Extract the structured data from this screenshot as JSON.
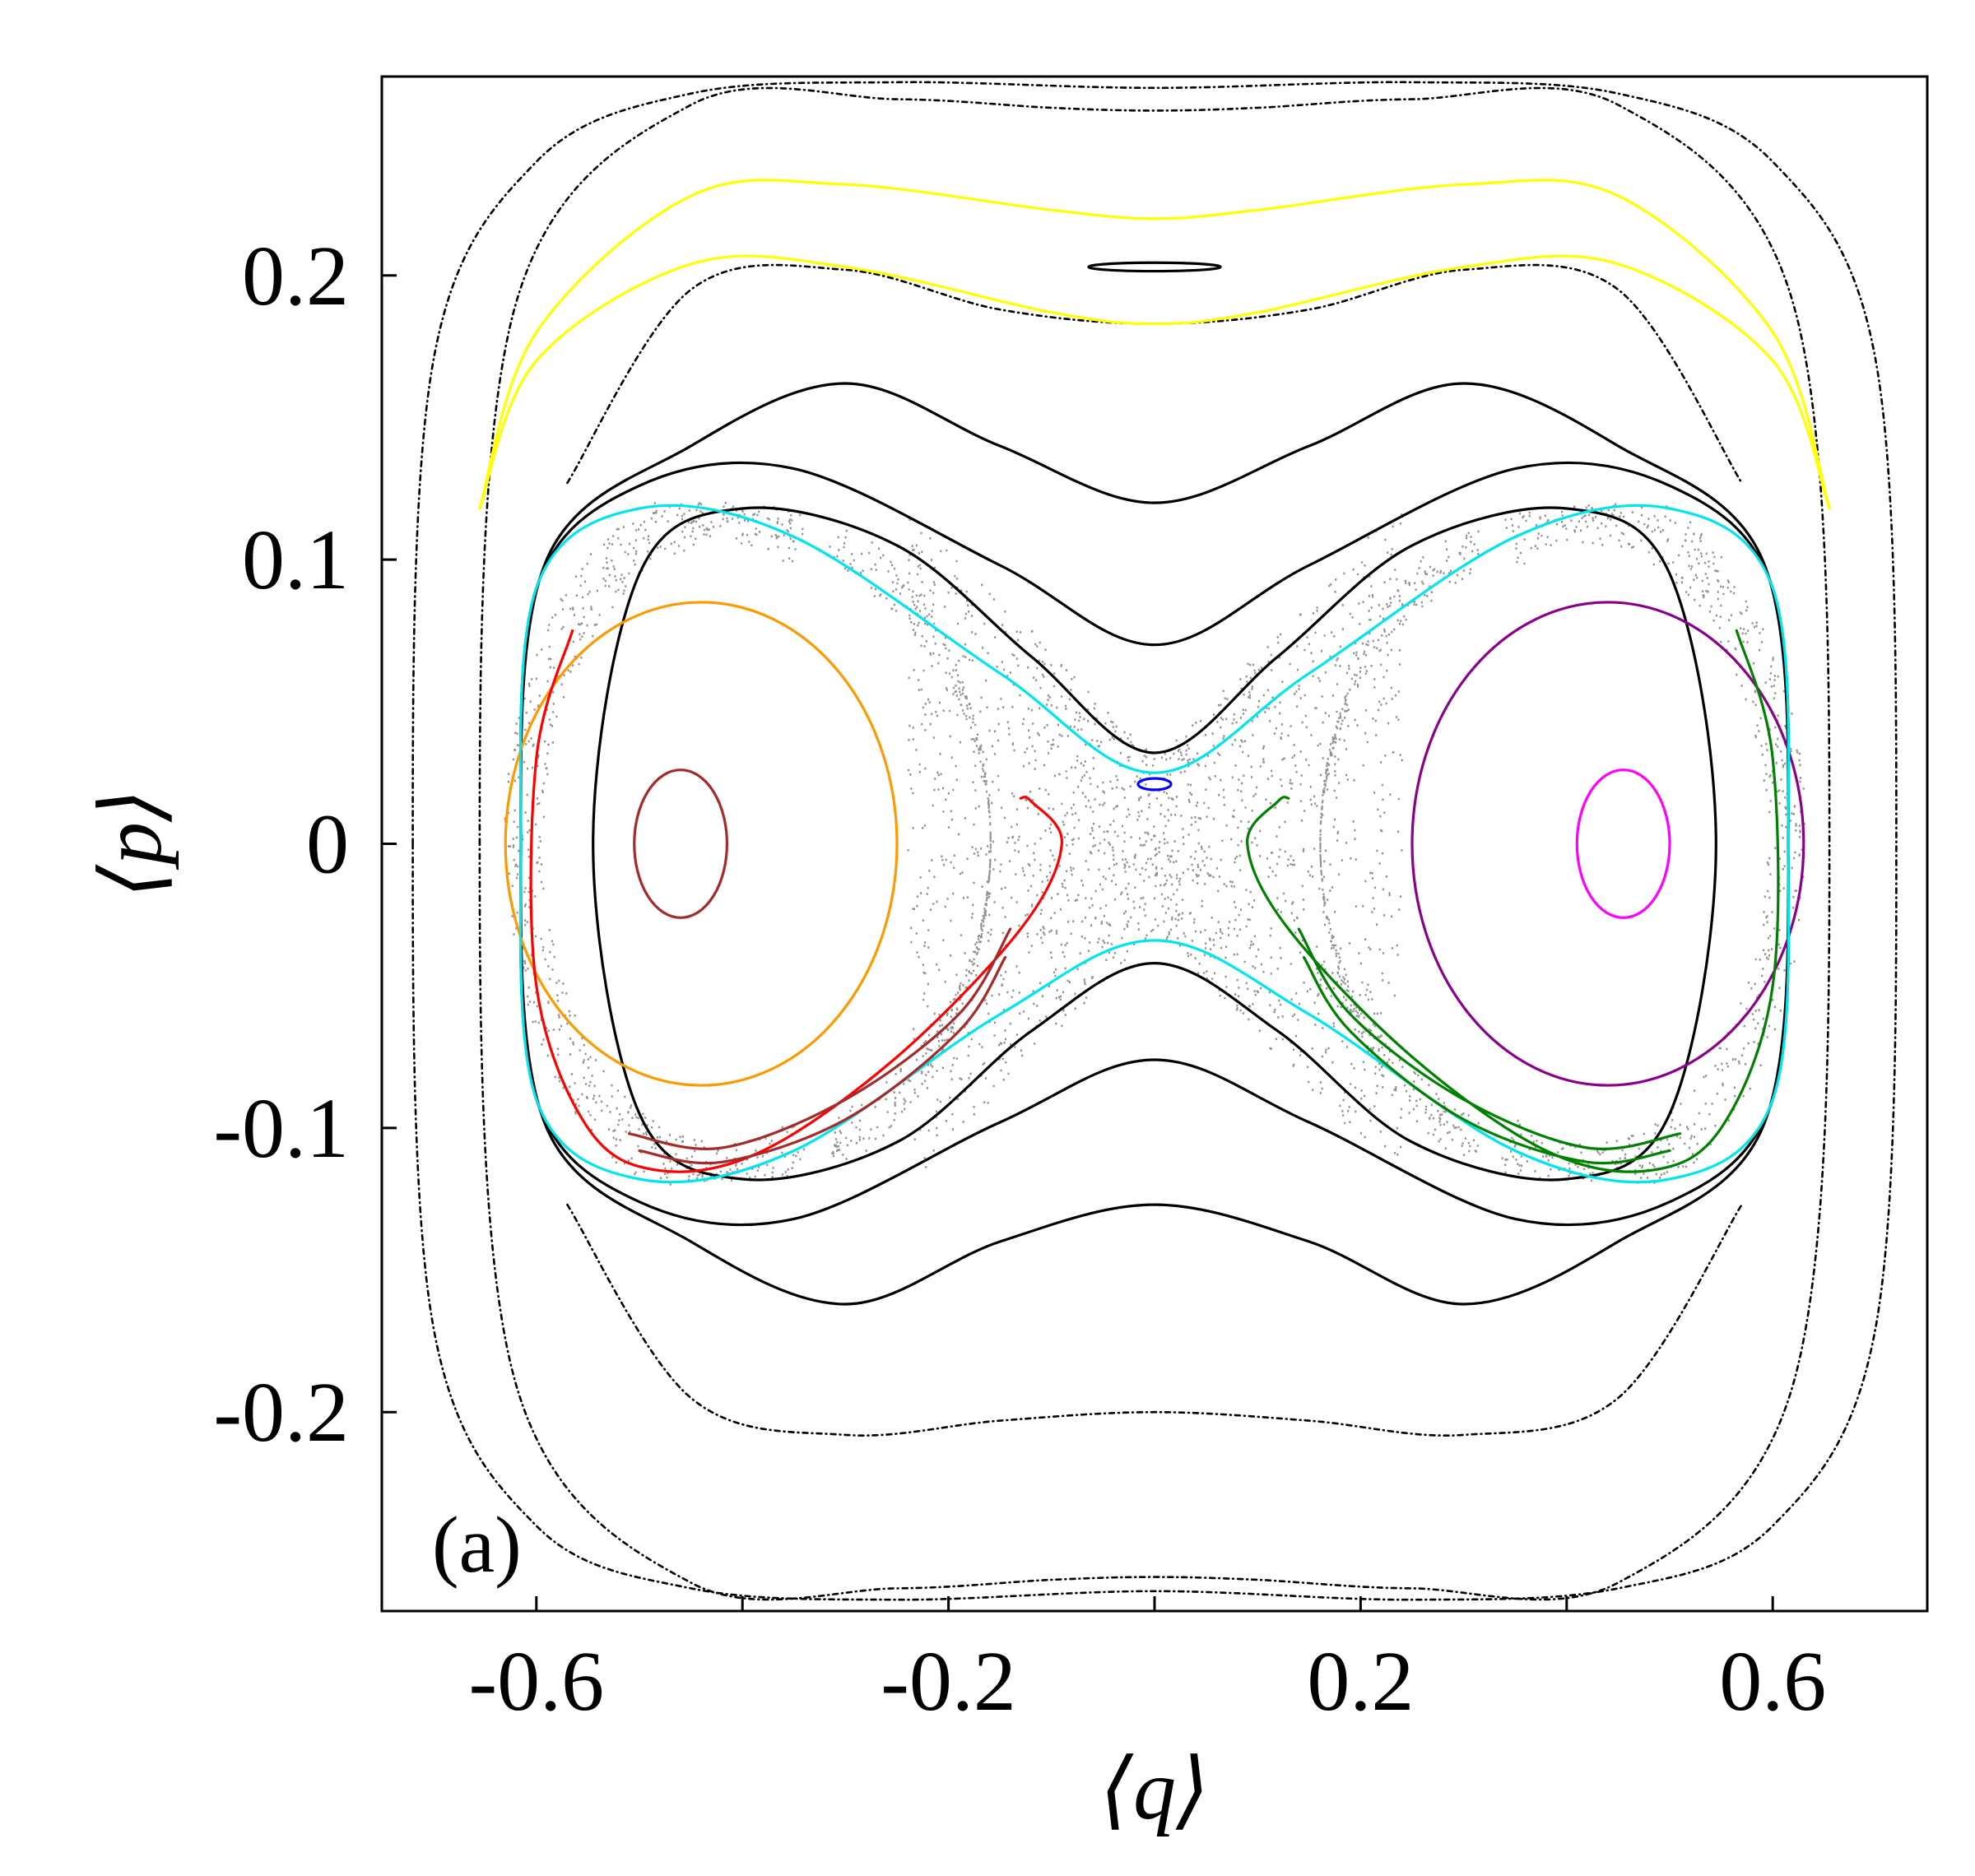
{
  "chart_data": {
    "type": "line",
    "panel_label": "(a)",
    "xlabel": "⟨q⟩",
    "ylabel": "⟨p⟩",
    "xlim": [
      -0.75,
      0.75
    ],
    "ylim": [
      -0.27,
      0.27
    ],
    "xticks": [
      -0.6,
      -0.4,
      -0.2,
      0,
      0.2,
      0.4,
      0.6
    ],
    "xticklabels": [
      "-0.6",
      "",
      "-0.2",
      "",
      "0.2",
      "",
      "0.6"
    ],
    "yticks": [
      -0.2,
      -0.1,
      0,
      0.1,
      0.2
    ],
    "yticklabels": [
      "-0.2",
      "-0.1",
      "0",
      "0.1",
      "0.2"
    ],
    "grid": false,
    "legend": false,
    "colors": {
      "black": "#000000",
      "yellow": "#ffff00",
      "orange": "#ff9900",
      "brown": "#a52a2a",
      "red": "#ff0000",
      "purple": "#8b008b",
      "magenta": "#ff00ff",
      "green": "#008000",
      "cyan": "#00e5ee",
      "blue": "#0000ff",
      "gray": "#808080"
    },
    "series": [
      {
        "color": "black",
        "dotted": true,
        "curve": {
          "kind": "closed",
          "x": [
            -0.655,
            -0.62,
            -0.45,
            -0.25,
            -0.1,
            0,
            0.1,
            0.25,
            0.45,
            0.62,
            0.655
          ],
          "y_top": [
            0,
            0.19,
            0.26,
            0.262,
            0.259,
            0.258,
            0.259,
            0.262,
            0.26,
            0.19,
            0
          ],
          "y_bot": [
            0,
            -0.19,
            -0.26,
            -0.262,
            -0.259,
            -0.258,
            -0.259,
            -0.262,
            -0.26,
            -0.19,
            0
          ]
        }
      },
      {
        "color": "black",
        "dotted": true,
        "curve": {
          "kind": "closed",
          "x": [
            -0.72,
            -0.7,
            -0.6,
            -0.45,
            -0.25,
            0,
            0.25,
            0.45,
            0.6,
            0.7,
            0.72
          ],
          "y_top": [
            0,
            0.17,
            0.24,
            0.264,
            0.268,
            0.266,
            0.268,
            0.264,
            0.24,
            0.17,
            0
          ],
          "y_bot": [
            0,
            -0.17,
            -0.24,
            -0.262,
            -0.266,
            -0.263,
            -0.266,
            -0.262,
            -0.24,
            -0.17,
            0
          ]
        }
      },
      {
        "color": "black",
        "dotted": false,
        "curve": {
          "kind": "closed",
          "x": [
            -0.615,
            -0.59,
            -0.45,
            -0.3,
            -0.15,
            0,
            0.15,
            0.3,
            0.45,
            0.59,
            0.615
          ],
          "y_top": [
            0,
            0.1,
            0.14,
            0.162,
            0.14,
            0.12,
            0.14,
            0.162,
            0.14,
            0.1,
            0
          ],
          "y_bot": [
            0,
            -0.1,
            -0.14,
            -0.162,
            -0.14,
            -0.127,
            -0.14,
            -0.162,
            -0.14,
            -0.1,
            0
          ]
        }
      },
      {
        "color": "black",
        "dotted": false,
        "curve": {
          "kind": "closed",
          "x": [
            -0.615,
            -0.6,
            -0.5,
            -0.35,
            -0.15,
            0,
            0.15,
            0.35,
            0.5,
            0.6,
            0.615
          ],
          "y_top": [
            0,
            0.09,
            0.126,
            0.132,
            0.098,
            0.07,
            0.098,
            0.132,
            0.126,
            0.09,
            0
          ],
          "y_bot": [
            0,
            -0.09,
            -0.126,
            -0.132,
            -0.098,
            -0.076,
            -0.098,
            -0.132,
            -0.126,
            -0.09,
            0
          ]
        }
      },
      {
        "color": "black",
        "dotted": false,
        "curve": {
          "kind": "closed",
          "x": [
            -0.545,
            -0.5,
            -0.4,
            -0.25,
            -0.12,
            0,
            0.12,
            0.25,
            0.4,
            0.5,
            0.545
          ],
          "y_top": [
            0,
            0.095,
            0.118,
            0.105,
            0.066,
            0.032,
            0.066,
            0.105,
            0.118,
            0.095,
            0
          ],
          "y_bot": [
            0,
            -0.095,
            -0.118,
            -0.105,
            -0.066,
            -0.042,
            -0.066,
            -0.105,
            -0.118,
            -0.095,
            0
          ]
        }
      },
      {
        "color": "black",
        "dotted": true,
        "curve": {
          "kind": "open",
          "x": [
            -0.57,
            -0.45,
            -0.3,
            -0.15,
            0,
            0.15,
            0.3,
            0.45,
            0.57
          ],
          "y": [
            0.127,
            0.195,
            0.202,
            0.188,
            0.183,
            0.188,
            0.202,
            0.195,
            0.127
          ]
        }
      },
      {
        "color": "black",
        "dotted": true,
        "curve": {
          "kind": "open",
          "x": [
            -0.57,
            -0.45,
            -0.3,
            -0.15,
            0,
            0.15,
            0.3,
            0.45,
            0.57
          ],
          "y": [
            -0.127,
            -0.195,
            -0.208,
            -0.203,
            -0.2,
            -0.203,
            -0.208,
            -0.195,
            -0.127
          ]
        }
      },
      {
        "color": "yellow",
        "dotted": false,
        "curve": {
          "kind": "open",
          "x": [
            -0.655,
            -0.6,
            -0.45,
            -0.3,
            -0.1,
            0,
            0.1,
            0.3,
            0.45,
            0.6,
            0.655
          ],
          "y": [
            0.118,
            0.18,
            0.228,
            0.232,
            0.223,
            0.22,
            0.223,
            0.232,
            0.228,
            0.18,
            0.118
          ]
        }
      },
      {
        "color": "yellow",
        "dotted": false,
        "curve": {
          "kind": "open",
          "x": [
            -0.655,
            -0.6,
            -0.45,
            -0.3,
            -0.1,
            0,
            0.1,
            0.3,
            0.45,
            0.6,
            0.655
          ],
          "y": [
            0.118,
            0.17,
            0.204,
            0.203,
            0.187,
            0.183,
            0.187,
            0.203,
            0.204,
            0.17,
            0.118
          ]
        }
      },
      {
        "color": "black",
        "dotted": false,
        "curve": {
          "kind": "ellipse",
          "cx": 0,
          "cy": 0.203,
          "rx": 0.064,
          "ry": 0.0015
        }
      },
      {
        "color": "orange",
        "dotted": false,
        "curve": {
          "kind": "ellipse",
          "cx": -0.44,
          "cy": 0,
          "rx": 0.19,
          "ry": 0.085
        }
      },
      {
        "color": "purple",
        "dotted": false,
        "curve": {
          "kind": "ellipse",
          "cx": 0.44,
          "cy": 0,
          "rx": 0.19,
          "ry": 0.085
        }
      },
      {
        "color": "brown",
        "dotted": false,
        "curve": {
          "kind": "ellipse",
          "cx": -0.46,
          "cy": 0,
          "rx": 0.045,
          "ry": 0.026
        }
      },
      {
        "color": "magenta",
        "dotted": false,
        "curve": {
          "kind": "ellipse",
          "cx": 0.455,
          "cy": 0,
          "rx": 0.045,
          "ry": 0.026
        }
      },
      {
        "color": "cyan",
        "dotted": false,
        "curve": {
          "kind": "closed",
          "x": [
            -0.615,
            -0.6,
            -0.5,
            -0.35,
            -0.15,
            0,
            0.15,
            0.35,
            0.5,
            0.6,
            0.615
          ],
          "y_top": [
            0,
            0.09,
            0.118,
            0.108,
            0.06,
            0.025,
            0.06,
            0.108,
            0.118,
            0.09,
            0
          ],
          "y_bot": [
            0,
            -0.09,
            -0.118,
            -0.108,
            -0.06,
            -0.034,
            -0.06,
            -0.108,
            -0.118,
            -0.09,
            0
          ]
        }
      },
      {
        "color": "blue",
        "dotted": false,
        "curve": {
          "kind": "ellipse",
          "cx": 0,
          "cy": 0.021,
          "rx": 0.016,
          "ry": 0.002
        }
      },
      {
        "color": "red",
        "dotted": false,
        "curve": {
          "kind": "open",
          "x": [
            -0.565,
            -0.6,
            -0.6,
            -0.55,
            -0.48,
            -0.38,
            -0.25,
            -0.13,
            -0.09,
            -0.12,
            -0.13
          ],
          "y": [
            0.075,
            0.03,
            -0.05,
            -0.1,
            -0.115,
            -0.108,
            -0.075,
            -0.03,
            0.0,
            0.015,
            0.016
          ]
        }
      },
      {
        "color": "brown",
        "dotted": false,
        "curve": {
          "kind": "open",
          "x": [
            -0.51,
            -0.42,
            -0.3,
            -0.19,
            -0.14
          ],
          "y": [
            -0.102,
            -0.107,
            -0.09,
            -0.06,
            -0.03
          ]
        }
      },
      {
        "color": "brown",
        "dotted": false,
        "curve": {
          "kind": "open",
          "x": [
            -0.5,
            -0.42,
            -0.3,
            -0.19,
            -0.145
          ],
          "y": [
            -0.108,
            -0.112,
            -0.097,
            -0.066,
            -0.04
          ]
        }
      },
      {
        "color": "green",
        "dotted": false,
        "curve": {
          "kind": "open",
          "x": [
            0.565,
            0.6,
            0.6,
            0.55,
            0.48,
            0.38,
            0.25,
            0.13,
            0.09,
            0.12,
            0.13
          ],
          "y": [
            0.075,
            0.03,
            -0.05,
            -0.1,
            -0.115,
            -0.108,
            -0.075,
            -0.03,
            0.0,
            0.015,
            0.016
          ]
        }
      },
      {
        "color": "green",
        "dotted": false,
        "curve": {
          "kind": "open",
          "x": [
            0.51,
            0.42,
            0.3,
            0.19,
            0.14
          ],
          "y": [
            -0.102,
            -0.107,
            -0.09,
            -0.06,
            -0.03
          ]
        }
      },
      {
        "color": "green",
        "dotted": false,
        "curve": {
          "kind": "open",
          "x": [
            0.5,
            0.42,
            0.3,
            0.19,
            0.145
          ],
          "y": [
            -0.108,
            -0.112,
            -0.097,
            -0.066,
            -0.04
          ]
        }
      }
    ],
    "chaotic_region": {
      "color": "gray",
      "count": 5200
    }
  }
}
